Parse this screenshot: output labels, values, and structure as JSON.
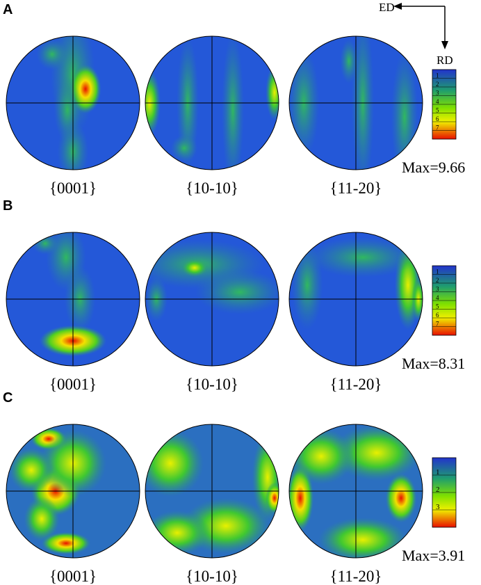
{
  "axes": {
    "horizontal": "ED",
    "vertical": "RD"
  },
  "panels": [
    {
      "label": "A",
      "figures": [
        "{0001}",
        "{10-10}",
        "{11-20}"
      ],
      "max": "Max=9.66",
      "scale": [
        1,
        2,
        3,
        4,
        5,
        6,
        7
      ]
    },
    {
      "label": "B",
      "figures": [
        "{0001}",
        "{10-10}",
        "{11-20}"
      ],
      "max": "Max=8.31",
      "scale": [
        1,
        2,
        3,
        4,
        5,
        6,
        7
      ]
    },
    {
      "label": "C",
      "figures": [
        "{0001}",
        "{10-10}",
        "{11-20}"
      ],
      "max": "Max=3.91",
      "scale": [
        1,
        2,
        3
      ]
    }
  ]
}
